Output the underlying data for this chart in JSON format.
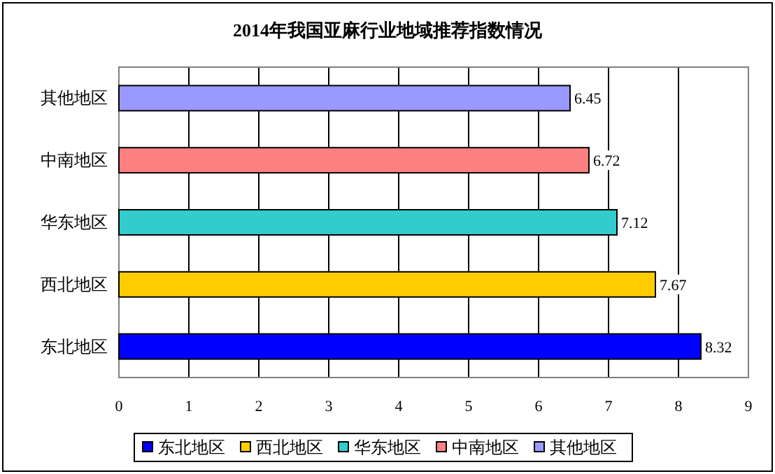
{
  "chart_data": {
    "type": "bar",
    "orientation": "horizontal",
    "stacked": true,
    "title": "2014年我国亚麻行业地域推荐指数情况",
    "categories": [
      "其他地区",
      "中南地区",
      "华东地区",
      "西北地区",
      "东北地区"
    ],
    "series": [
      {
        "name": "东北地区",
        "color": "#0000ff",
        "values": [
          null,
          null,
          null,
          null,
          8.32
        ]
      },
      {
        "name": "西北地区",
        "color": "#ffcc00",
        "values": [
          null,
          null,
          null,
          7.67,
          null
        ]
      },
      {
        "name": "华东地区",
        "color": "#33cccc",
        "values": [
          null,
          null,
          7.12,
          null,
          null
        ]
      },
      {
        "name": "中南地区",
        "color": "#ff8080",
        "values": [
          null,
          6.72,
          null,
          null,
          null
        ]
      },
      {
        "name": "其他地区",
        "color": "#9999ff",
        "values": [
          6.45,
          null,
          null,
          null,
          null
        ]
      }
    ],
    "xlim": [
      0,
      9
    ],
    "xticks": [
      0,
      1,
      2,
      3,
      4,
      5,
      6,
      7,
      8,
      9
    ],
    "grid": "x",
    "legend": "bottom",
    "data_labels": true
  }
}
